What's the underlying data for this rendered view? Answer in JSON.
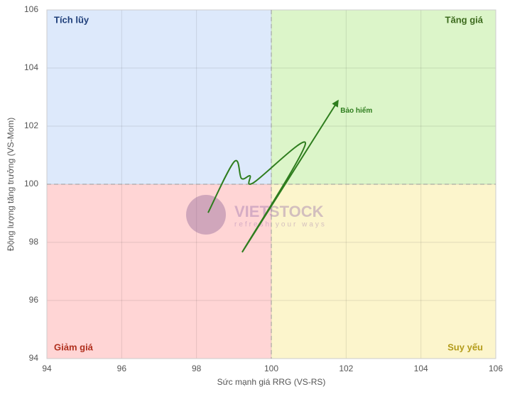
{
  "chart_data": {
    "type": "line",
    "x_label": "Sức mạnh giá RRG (VS-RS)",
    "y_label": "Động lượng tăng trưởng (VS-Mom)",
    "xlim": [
      94,
      106
    ],
    "ylim": [
      94,
      106
    ],
    "xticks": [
      94,
      96,
      98,
      100,
      102,
      104,
      106
    ],
    "yticks": [
      94,
      96,
      98,
      100,
      102,
      104,
      106
    ],
    "grid": true,
    "center": [
      100,
      100
    ],
    "quadrants": [
      {
        "label": "Tích lũy",
        "corner": "top-left",
        "color": "#dde9fb",
        "label_color": "#1f3f7a"
      },
      {
        "label": "Tăng giá",
        "corner": "top-right",
        "color": "#dcf5c9",
        "label_color": "#3d6b1e"
      },
      {
        "label": "Giảm giá",
        "corner": "bottom-left",
        "color": "#ffd5d5",
        "label_color": "#b0301e"
      },
      {
        "label": "Suy yếu",
        "corner": "bottom-right",
        "color": "#fcf5cc",
        "label_color": "#b39b1a"
      }
    ],
    "watermark": {
      "text": "VIETSTOCK",
      "tagline": "refresh your ways"
    },
    "series": [
      {
        "name": "Bảo hiểm",
        "color": "#2e7d1e",
        "x": [
          98.31,
          99.01,
          99.2,
          99.43,
          99.52,
          100.91,
          99.22,
          101.77
        ],
        "values": [
          99.02,
          100.78,
          100.2,
          100.29,
          100.05,
          101.39,
          97.66,
          102.85
        ]
      }
    ]
  }
}
